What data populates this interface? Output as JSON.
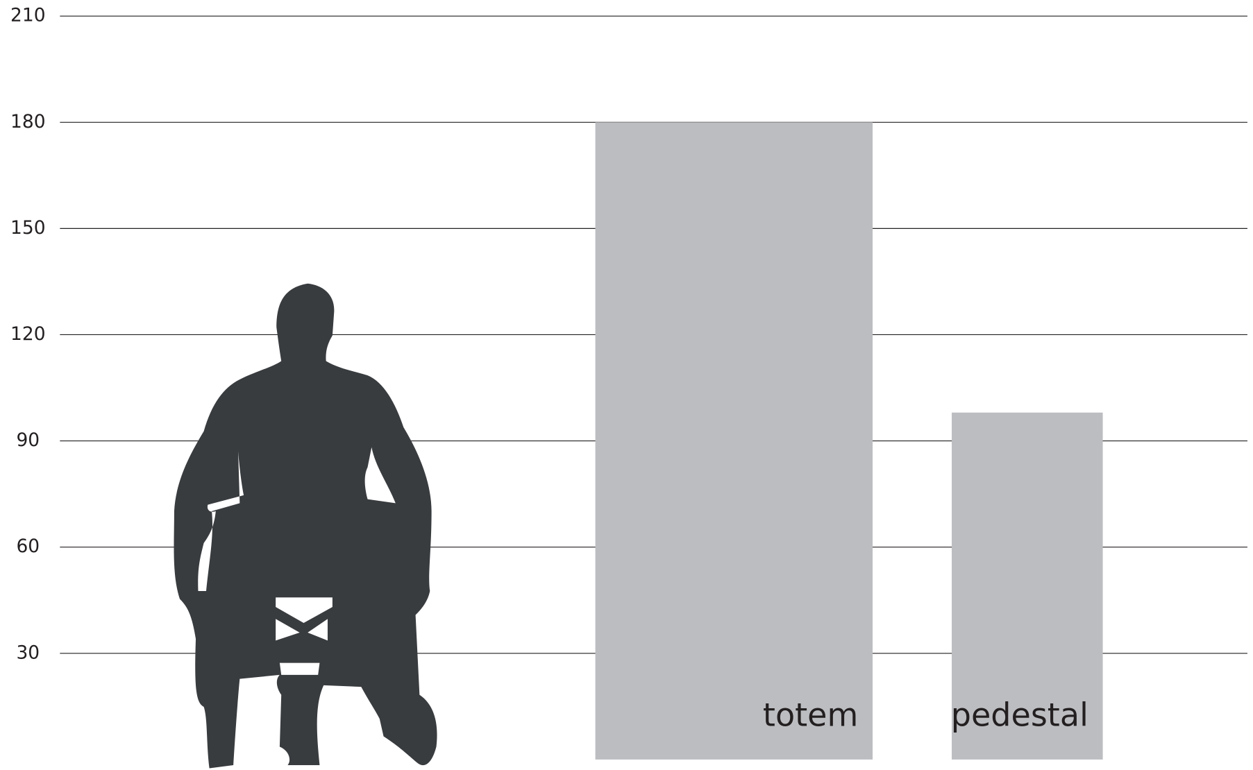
{
  "chart_data": {
    "type": "bar",
    "categories": [
      "totem",
      "pedestal"
    ],
    "values": [
      180,
      98
    ],
    "color": "#bcbdc1",
    "ylim": [
      0,
      210
    ],
    "yticks": [
      30,
      60,
      90,
      120,
      150,
      180,
      210
    ],
    "grid": true
  }
}
